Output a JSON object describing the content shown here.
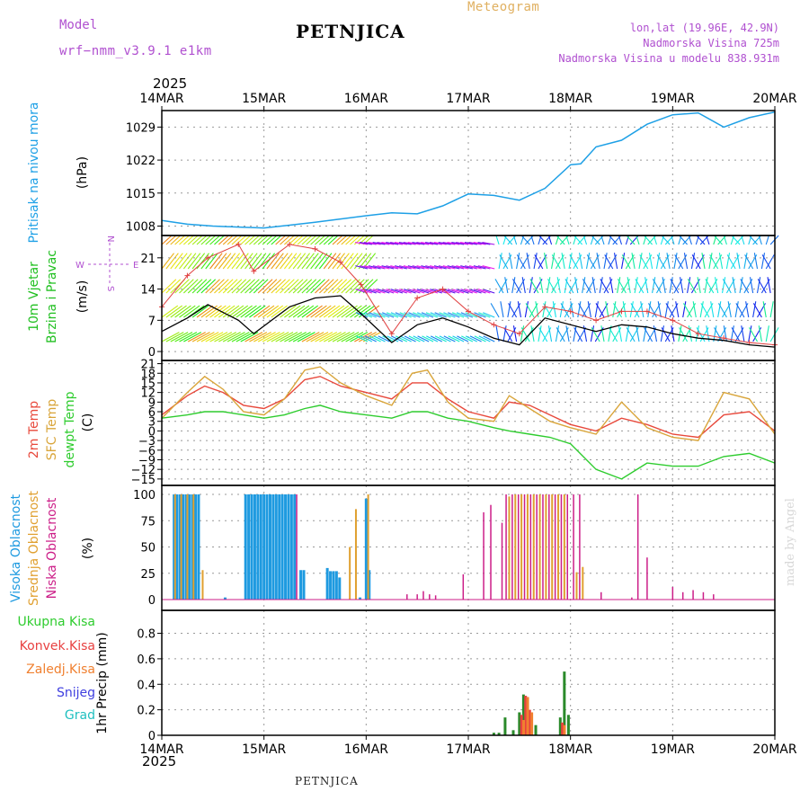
{
  "header": {
    "model_label": "Model",
    "model_name": "wrf−nmm_v3.9.1  e1km",
    "title": "PETNJICA",
    "meteogram_label": "Meteogram",
    "lonlat": "lon,lat (19.96E, 42.9N)",
    "altitude": "Nadmorska Visina 725m",
    "model_altitude": "Nadmorska Visina u modelu 838.931m",
    "year_top": "2025",
    "year_bottom": "2025",
    "footer_title": "PETNJICA",
    "credit": "made by Angel"
  },
  "colors": {
    "pressure": "#1ea0e6",
    "temp2m": "#e8493c",
    "sfc": "#d9a53a",
    "dewpt": "#2ecc2e",
    "high_cloud": "#1e9ae0",
    "mid_cloud": "#e0a030",
    "low_cloud": "#cc1e88",
    "total_precip": "#2a8a2a",
    "konvek": "#e84040",
    "zaledj": "#f08030",
    "snijeg": "#4040e0",
    "grad": "#20c0c0",
    "wind_label": "#22c022",
    "legend_purple": "#b050d0"
  },
  "x_axis": {
    "ticks": [
      "14MAR",
      "15MAR",
      "16MAR",
      "17MAR",
      "18MAR",
      "19MAR",
      "20MAR"
    ]
  },
  "chart_data": [
    {
      "type": "line",
      "panel": "pressure",
      "ylabel_lines": [
        "Pritisak na nivou mora",
        "(hPa)"
      ],
      "yticks": [
        1008,
        1015,
        1022,
        1029
      ],
      "ylim": [
        1006,
        1032.5
      ],
      "x_days": [
        0,
        0.25,
        0.5,
        0.75,
        1.0,
        1.25,
        1.5,
        1.75,
        2.0,
        2.25,
        2.5,
        2.75,
        3.0,
        3.25,
        3.5,
        3.75,
        4.0,
        4.1,
        4.25,
        4.5,
        4.75,
        5.0,
        5.25,
        5.5,
        5.75,
        6.0
      ],
      "values": [
        1009.2,
        1008.4,
        1008.0,
        1007.8,
        1007.6,
        1008.2,
        1008.8,
        1009.5,
        1010.2,
        1010.8,
        1010.6,
        1012.3,
        1014.8,
        1014.5,
        1013.5,
        1016.0,
        1021.0,
        1021.2,
        1024.8,
        1026.2,
        1029.6,
        1031.6,
        1032.0,
        1029.0,
        1031.0,
        1032.2
      ],
      "series": [
        {
          "name": ""
        }
      ]
    },
    {
      "type": "line",
      "panel": "wind",
      "ylabel_lines": [
        "10m Vjetar",
        "Brzina i Pravac",
        "(m/s)"
      ],
      "compass": [
        "N",
        "E",
        "W",
        "S"
      ],
      "yticks": [
        0,
        7,
        14,
        21
      ],
      "ylim": [
        -2,
        26
      ],
      "x_days": [
        0,
        0.25,
        0.45,
        0.75,
        0.9,
        1.25,
        1.5,
        1.75,
        1.95,
        2.25,
        2.5,
        2.75,
        3.0,
        3.25,
        3.5,
        3.75,
        4.0,
        4.25,
        4.5,
        4.75,
        5.0,
        5.25,
        5.5,
        5.75,
        6.0
      ],
      "series": [
        {
          "name": "",
          "values": [
            4.5,
            7.5,
            10.5,
            7.0,
            4.0,
            10.0,
            12.0,
            12.5,
            8.5,
            2.0,
            6.0,
            7.5,
            5.5,
            3.0,
            1.5,
            7.5,
            6.0,
            4.5,
            6.0,
            5.5,
            4.0,
            3.0,
            2.5,
            1.5,
            1.0
          ]
        },
        {
          "name": "",
          "values": [
            10,
            17,
            21,
            24,
            18,
            24,
            23,
            20,
            15,
            4,
            12,
            14,
            9,
            6,
            4,
            10,
            9,
            7,
            9,
            9,
            7,
            4,
            3,
            2,
            1.5
          ]
        }
      ]
    },
    {
      "type": "line",
      "panel": "temperature",
      "ylabel_lines": [
        "2m Temp",
        "SFC Temp",
        "dewpt Temp",
        "(C)"
      ],
      "yticks": [
        21,
        18,
        15,
        12,
        9,
        6,
        3,
        0,
        -3,
        -6,
        -9,
        -12,
        -15
      ],
      "ylim": [
        -17,
        22
      ],
      "x_days": [
        0,
        0.25,
        0.42,
        0.6,
        0.8,
        1.0,
        1.2,
        1.4,
        1.55,
        1.75,
        2.0,
        2.25,
        2.45,
        2.6,
        2.8,
        3.0,
        3.25,
        3.4,
        3.6,
        3.8,
        4.0,
        4.25,
        4.5,
        4.75,
        5.0,
        5.25,
        5.5,
        5.75,
        6.0
      ],
      "series": [
        {
          "name": "2m Temp",
          "values": [
            5,
            11,
            14,
            12,
            8,
            7,
            10,
            16,
            17,
            14,
            12,
            10,
            15,
            15,
            10,
            6,
            4,
            9,
            8,
            5,
            2,
            0,
            4,
            2,
            -1,
            -2,
            5,
            6,
            0
          ]
        },
        {
          "name": "SFC Temp",
          "values": [
            4,
            12,
            17,
            13,
            6,
            5,
            10,
            19,
            20,
            15,
            11,
            8,
            18,
            19,
            9,
            4,
            3,
            11,
            7,
            3,
            1,
            -1,
            9,
            1,
            -2,
            -3,
            12,
            10,
            -1
          ]
        },
        {
          "name": "dewpt Temp",
          "values": [
            4,
            5,
            6,
            6,
            5,
            4,
            5,
            7,
            8,
            6,
            5,
            4,
            6,
            6,
            4,
            3,
            1,
            0,
            -1,
            -2,
            -4,
            -12,
            -15,
            -10,
            -11,
            -11,
            -8,
            -7,
            -10
          ]
        }
      ]
    },
    {
      "type": "bar",
      "panel": "cloud",
      "ylabel_lines": [
        "Visoka Oblacnost",
        "Srednja Oblacnost",
        "Niska Oblacnost",
        "(%)"
      ],
      "yticks": [
        0,
        25,
        50,
        75,
        100
      ],
      "ylim": [
        0,
        100
      ],
      "series": [
        {
          "name": "Visoka Oblacnost",
          "x_days": [
            0.12,
            0.15,
            0.18,
            0.21,
            0.24,
            0.27,
            0.3,
            0.33,
            0.36,
            0.62,
            0.82,
            0.85,
            0.88,
            0.91,
            0.94,
            0.97,
            1.0,
            1.03,
            1.06,
            1.09,
            1.12,
            1.15,
            1.18,
            1.21,
            1.24,
            1.27,
            1.3,
            1.36,
            1.39,
            1.62,
            1.65,
            1.68,
            1.71,
            1.74,
            1.94,
            2.0,
            2.03
          ],
          "values": [
            100,
            100,
            100,
            100,
            100,
            100,
            100,
            100,
            100,
            2,
            100,
            100,
            100,
            100,
            100,
            100,
            100,
            100,
            100,
            100,
            100,
            100,
            100,
            100,
            100,
            100,
            100,
            28,
            28,
            30,
            27,
            27,
            27,
            21,
            2,
            96,
            28
          ]
        },
        {
          "name": "Srednja Oblacnost",
          "x_days": [
            0.13,
            0.19,
            0.25,
            0.31,
            0.4,
            1.84,
            1.9,
            2.02,
            3.4,
            3.46,
            3.52,
            3.58,
            3.64,
            3.7,
            3.76,
            3.82,
            3.88,
            3.94,
            4.06,
            4.12
          ],
          "values": [
            100,
            100,
            100,
            100,
            28,
            50,
            86,
            100,
            98,
            100,
            100,
            100,
            100,
            100,
            100,
            100,
            100,
            100,
            26,
            31
          ]
        },
        {
          "name": "Niska Oblacnost",
          "x_days": [
            1.32,
            2.4,
            2.5,
            2.56,
            2.62,
            2.68,
            2.95,
            3.15,
            3.22,
            3.33,
            3.37,
            3.43,
            3.49,
            3.55,
            3.61,
            3.67,
            3.73,
            3.79,
            3.85,
            3.91,
            3.97,
            4.03,
            4.09,
            4.3,
            4.6,
            4.66,
            4.75,
            5.0,
            5.1,
            5.2,
            5.3,
            5.4
          ],
          "values": [
            100,
            5,
            5,
            8,
            5,
            4,
            24,
            83,
            90,
            73,
            100,
            100,
            100,
            100,
            100,
            100,
            100,
            100,
            100,
            100,
            100,
            100,
            100,
            7,
            2,
            100,
            40,
            12,
            7,
            9,
            7,
            5
          ]
        }
      ]
    },
    {
      "type": "bar",
      "panel": "precip",
      "ylabel_lines": [
        "Ukupna Kisa",
        "Konvek.Kisa",
        "Zaledj.Kisa",
        "Snijeg",
        "Grad",
        "1hr Precip (mm)"
      ],
      "yticks": [
        0,
        0.2,
        0.4,
        0.6,
        0.8
      ],
      "ylim": [
        0,
        0.98
      ],
      "series": [
        {
          "name": "Ukupna Kisa",
          "x_days": [
            3.25,
            3.3,
            3.36,
            3.44,
            3.5,
            3.54,
            3.58,
            3.62,
            3.66,
            3.9,
            3.94,
            3.98
          ],
          "values": [
            0.02,
            0.02,
            0.14,
            0.04,
            0.18,
            0.32,
            0.26,
            0.14,
            0.08,
            0.14,
            0.5,
            0.16
          ]
        },
        {
          "name": "Konvek.Kisa",
          "x_days": [
            3.51,
            3.55,
            3.59,
            3.91
          ],
          "values": [
            0.16,
            0.31,
            0.2,
            0.1
          ]
        },
        {
          "name": "Zaledj.Kisa",
          "x_days": [
            3.52,
            3.56,
            3.6,
            3.92
          ],
          "values": [
            0.12,
            0.3,
            0.18,
            0.08
          ]
        },
        {
          "name": "Snijeg",
          "x_days": [],
          "values": []
        },
        {
          "name": "Grad",
          "x_days": [],
          "values": []
        }
      ]
    }
  ]
}
